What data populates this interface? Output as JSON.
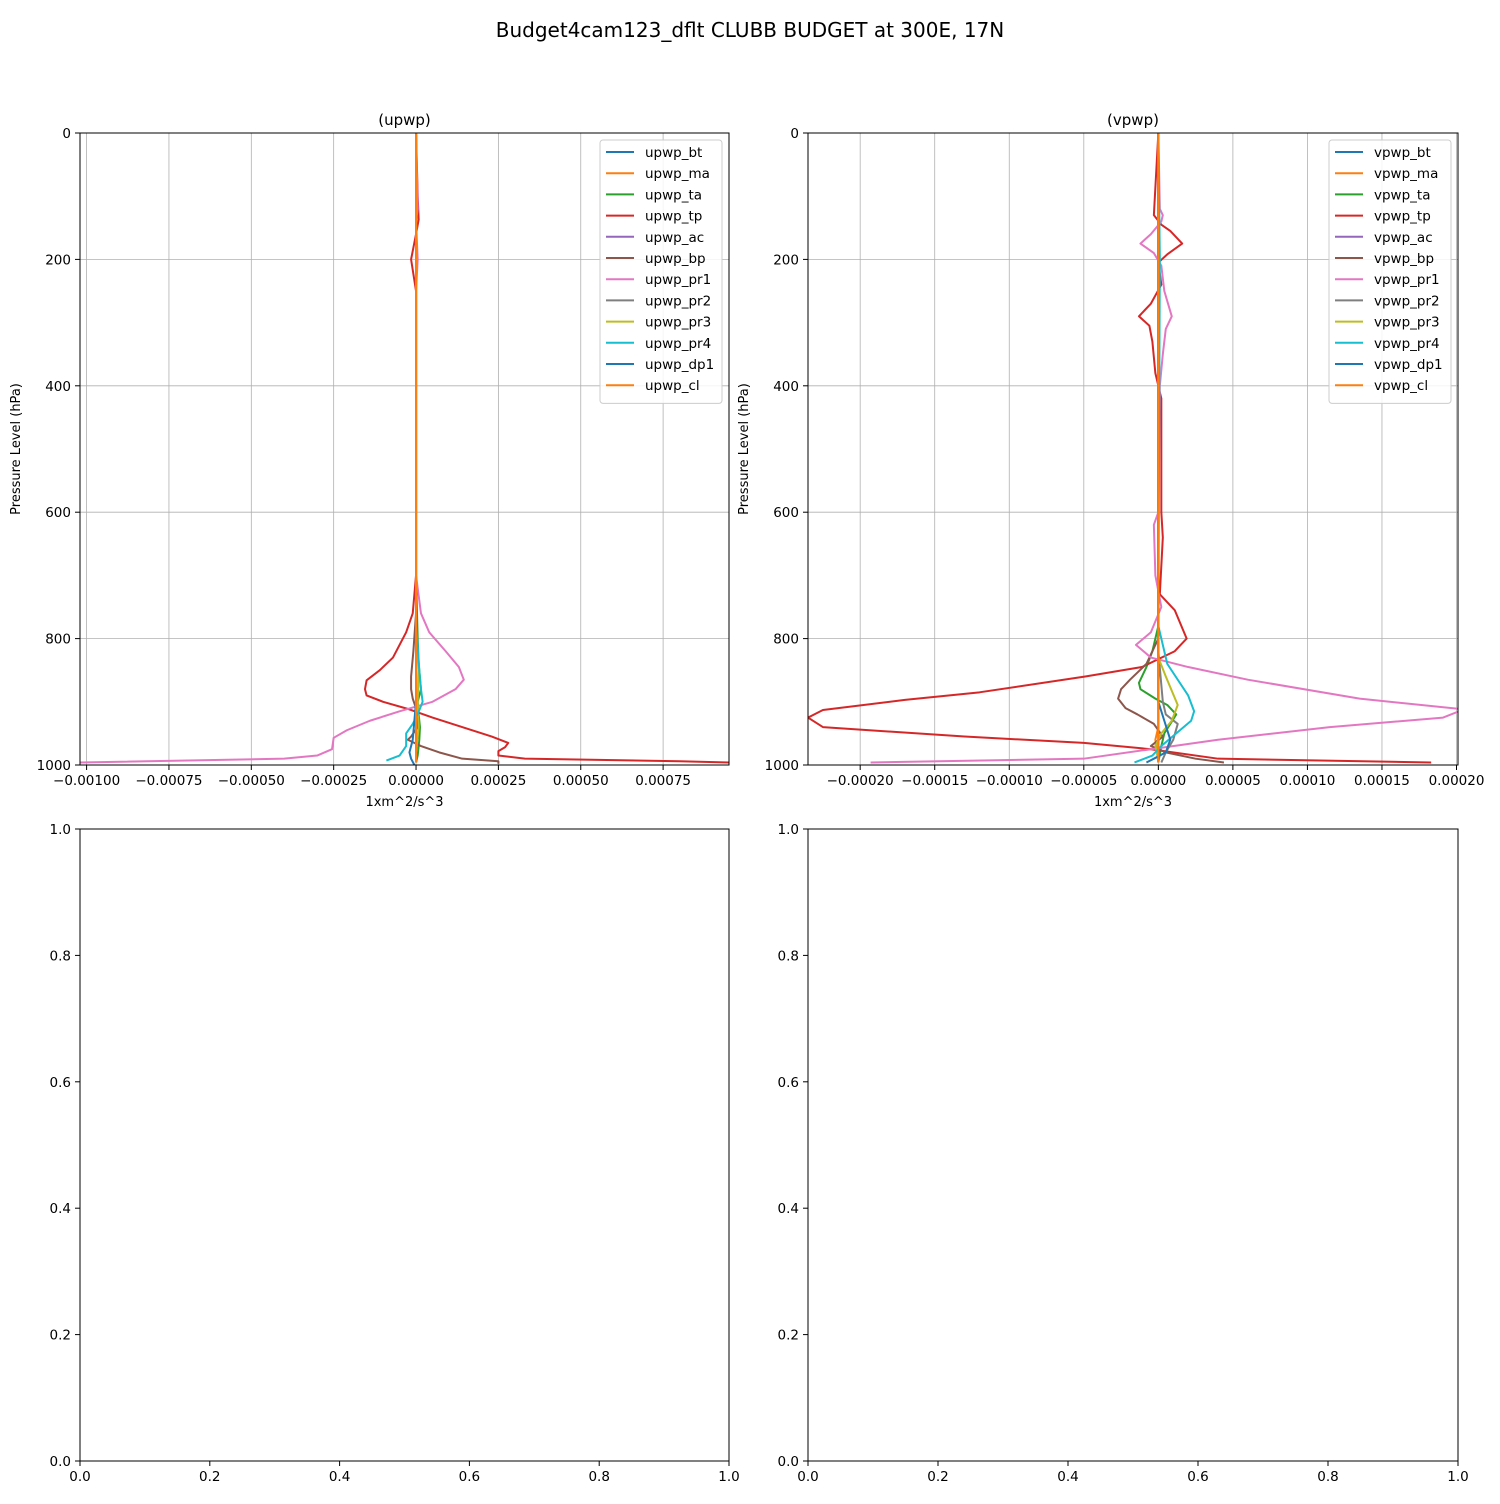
{
  "figure": {
    "suptitle": "Budget4cam123_dflt CLUBB BUDGET at 300E, 17N"
  },
  "chart_data": [
    {
      "type": "line",
      "title": "(upwp)",
      "xlabel": "1xm^2/s^3",
      "ylabel": "Pressure Level (hPa)",
      "xlim": [
        -0.00102,
        0.00095
      ],
      "ylim": [
        1000,
        0
      ],
      "xticks": [
        -0.001,
        -0.00075,
        -0.0005,
        -0.00025,
        0.0,
        0.00025,
        0.0005,
        0.00075
      ],
      "xtick_labels": [
        "−0.00100",
        "−0.00075",
        "−0.00050",
        "−0.00025",
        "0.00000",
        "0.00025",
        "0.00050",
        "0.00075"
      ],
      "yticks": [
        0,
        200,
        400,
        600,
        800,
        1000
      ],
      "ytick_labels": [
        "0",
        "200",
        "400",
        "600",
        "800",
        "1000"
      ],
      "grid": true,
      "legend_position": "top-right",
      "series": [
        {
          "name": "upwp_bt",
          "color": "#1f77b4",
          "x": [
            0,
            0,
            0,
            0
          ],
          "y": [
            0,
            500,
            900,
            996
          ]
        },
        {
          "name": "upwp_ma",
          "color": "#ff7f0e",
          "x": [
            0,
            0,
            0
          ],
          "y": [
            0,
            600,
            996
          ]
        },
        {
          "name": "upwp_ta",
          "color": "#2ca02c",
          "x": [
            0,
            0,
            5e-06,
            8e-06,
            1.5e-05,
            5e-06,
            8e-06,
            1.2e-05,
            1e-05,
            5e-06,
            0
          ],
          "y": [
            0,
            700,
            800,
            840,
            880,
            900,
            920,
            940,
            960,
            985,
            996
          ]
        },
        {
          "name": "upwp_tp",
          "color": "#d62728",
          "x": [
            0,
            5e-06,
            8e-06,
            0,
            -1.5e-05,
            0,
            0,
            0,
            -1e-05,
            -3e-05,
            -7e-05,
            -0.00011,
            -0.00015,
            -0.000155,
            -0.00015,
            -0.0001,
            -2e-05,
            5e-05,
            0.00014,
            0.00023,
            0.00028,
            0.00027,
            0.00025,
            0.00025,
            0.00033,
            0.0008,
            0.00095
          ],
          "y": [
            0,
            100,
            137,
            160,
            200,
            250,
            400,
            700,
            760,
            790,
            830,
            850,
            866,
            880,
            890,
            900,
            912,
            925,
            940,
            955,
            965,
            972,
            978,
            985,
            990,
            994,
            996
          ]
        },
        {
          "name": "upwp_ac",
          "color": "#9467bd",
          "x": [
            0,
            0,
            0
          ],
          "y": [
            0,
            500,
            996
          ]
        },
        {
          "name": "upwp_bp",
          "color": "#8c564b",
          "x": [
            0,
            0,
            -8e-06,
            -1.5e-05,
            -1.5e-05,
            -1e-05,
            0,
            5e-06,
            5e-06,
            -1.5e-05,
            -2.5e-05,
            1.5e-05,
            7e-05,
            0.00014,
            0.00025,
            0.00025
          ],
          "y": [
            0,
            760,
            820,
            860,
            880,
            895,
            910,
            925,
            940,
            955,
            960,
            970,
            980,
            990,
            994,
            998
          ]
        },
        {
          "name": "upwp_pr1",
          "color": "#e377c2",
          "x": [
            0,
            5e-06,
            0,
            5e-06,
            0,
            0,
            1.5e-05,
            4e-05,
            9e-05,
            0.00013,
            0.000145,
            0.00012,
            5e-05,
            -5e-05,
            -0.00014,
            -0.00021,
            -0.00025,
            -0.000255,
            -0.0003,
            -0.0004,
            -0.00102
          ],
          "y": [
            0,
            120,
            140,
            200,
            250,
            700,
            760,
            790,
            820,
            845,
            865,
            880,
            900,
            915,
            930,
            945,
            957,
            975,
            985,
            990,
            996
          ]
        },
        {
          "name": "upwp_pr2",
          "color": "#7f7f7f",
          "x": [
            0,
            0,
            0
          ],
          "y": [
            0,
            600,
            996
          ]
        },
        {
          "name": "upwp_pr3",
          "color": "#bcbd22",
          "x": [
            0,
            0,
            8e-06,
            5e-06,
            8e-06,
            0,
            0
          ],
          "y": [
            0,
            800,
            850,
            900,
            940,
            980,
            996
          ]
        },
        {
          "name": "upwp_pr4",
          "color": "#17becf",
          "x": [
            0,
            0,
            5e-06,
            1e-05,
            1.5e-05,
            2e-05,
            5e-06,
            -1e-05,
            -3e-05,
            -3e-05,
            -5e-05,
            -9e-05
          ],
          "y": [
            0,
            780,
            810,
            850,
            880,
            900,
            920,
            935,
            950,
            970,
            985,
            993
          ]
        },
        {
          "name": "upwp_dp1",
          "color": "#1f77b4",
          "x": [
            0,
            0,
            -1e-05,
            -2e-05,
            -1.5e-05,
            -5e-06
          ],
          "y": [
            0,
            900,
            960,
            980,
            990,
            1000
          ]
        },
        {
          "name": "upwp_cl",
          "color": "#ff7f0e",
          "x": [
            0,
            0,
            0
          ],
          "y": [
            0,
            500,
            996
          ]
        }
      ]
    },
    {
      "type": "line",
      "title": "(vpwp)",
      "xlabel": "1xm^2/s^3",
      "ylabel": "Pressure Level (hPa)",
      "xlim": [
        -0.000235,
        0.000201
      ],
      "ylim": [
        1000,
        0
      ],
      "xticks": [
        -0.0002,
        -0.00015,
        -0.0001,
        -5e-05,
        0.0,
        5e-05,
        0.0001,
        0.00015,
        0.0002
      ],
      "xtick_labels": [
        "−0.00020",
        "−0.00015",
        "−0.00010",
        "−0.00005",
        "0.00000",
        "0.00005",
        "0.00010",
        "0.00015",
        "0.00020"
      ],
      "yticks": [
        0,
        200,
        400,
        600,
        800,
        1000
      ],
      "ytick_labels": [
        "0",
        "200",
        "400",
        "600",
        "800",
        "1000"
      ],
      "grid": true,
      "legend_position": "top-right",
      "series": [
        {
          "name": "vpwp_bt",
          "color": "#1f77b4",
          "x": [
            0,
            0,
            0
          ],
          "y": [
            0,
            600,
            996
          ]
        },
        {
          "name": "vpwp_ma",
          "color": "#ff7f0e",
          "x": [
            0,
            0,
            0,
            -2e-06,
            -1e-06,
            0
          ],
          "y": [
            0,
            600,
            940,
            960,
            980,
            996
          ]
        },
        {
          "name": "vpwp_ta",
          "color": "#2ca02c",
          "x": [
            0,
            0,
            -4e-06,
            -8e-06,
            -1.3e-05,
            -1.2e-05,
            -2e-06,
            6e-06,
            1.2e-05,
            8e-06,
            4e-06,
            2e-06,
            0
          ],
          "y": [
            0,
            780,
            820,
            845,
            870,
            880,
            895,
            905,
            920,
            935,
            950,
            970,
            996
          ]
        },
        {
          "name": "vpwp_tp",
          "color": "#d62728",
          "x": [
            0,
            -3e-06,
            2e-06,
            8e-06,
            1.6e-05,
            6e-06,
            0,
            2e-06,
            -5e-06,
            -1.3e-05,
            -6e-06,
            -4e-06,
            -2e-06,
            2e-06,
            2e-06,
            3e-06,
            1e-06,
            1.1e-05,
            1.9e-05,
            1.1e-05,
            -1.1e-05,
            -4.9e-05,
            -0.00012,
            -0.00017,
            -0.000225,
            -0.000235,
            -0.000225,
            -0.00013,
            -5e-05,
            -5e-06,
            4e-05,
            0.000183
          ],
          "y": [
            0,
            130,
            145,
            155,
            175,
            192,
            205,
            240,
            270,
            290,
            305,
            330,
            380,
            420,
            600,
            640,
            730,
            755,
            800,
            820,
            845,
            860,
            885,
            897,
            913,
            925,
            940,
            955,
            965,
            975,
            990,
            996
          ]
        },
        {
          "name": "vpwp_ac",
          "color": "#9467bd",
          "x": [
            0,
            0,
            0
          ],
          "y": [
            0,
            600,
            996
          ]
        },
        {
          "name": "vpwp_bp",
          "color": "#8c564b",
          "x": [
            0,
            0,
            -8e-06,
            -1.9e-05,
            -2.5e-05,
            -2.7e-05,
            -2.2e-05,
            -1.4e-05,
            -3e-06,
            3e-06,
            -5e-06,
            5e-06,
            2.5e-05,
            4.4e-05
          ],
          "y": [
            0,
            800,
            840,
            865,
            880,
            895,
            910,
            920,
            935,
            955,
            970,
            980,
            990,
            996
          ]
        },
        {
          "name": "vpwp_pr1",
          "color": "#e377c2",
          "x": [
            0,
            1e-06,
            3e-06,
            2e-06,
            -5e-06,
            -1.2e-05,
            -3e-06,
            2e-06,
            4e-06,
            9e-06,
            5e-06,
            3e-06,
            1e-06,
            0,
            -3e-06,
            -2e-06,
            2e-06,
            -5e-06,
            -1.5e-05,
            -5e-06,
            2e-05,
            6e-05,
            0.000135,
            0.000205,
            0.000191,
            0.000115,
            4e-05,
            -5e-06,
            -5e-05,
            -0.000193
          ],
          "y": [
            0,
            120,
            130,
            140,
            160,
            175,
            190,
            210,
            250,
            290,
            310,
            350,
            400,
            600,
            620,
            700,
            750,
            790,
            810,
            830,
            845,
            865,
            895,
            912,
            925,
            940,
            960,
            975,
            990,
            996
          ]
        },
        {
          "name": "vpwp_pr2",
          "color": "#7f7f7f",
          "x": [
            0,
            0,
            3e-06,
            5e-06,
            1.3e-05,
            1e-05,
            5e-06,
            2e-06
          ],
          "y": [
            0,
            820,
            900,
            920,
            935,
            960,
            980,
            996
          ]
        },
        {
          "name": "vpwp_pr3",
          "color": "#bcbd22",
          "x": [
            0,
            0,
            5e-06,
            1.3e-05,
            9e-06,
            2e-06,
            -2e-06,
            0
          ],
          "y": [
            0,
            830,
            860,
            905,
            930,
            950,
            970,
            990
          ]
        },
        {
          "name": "vpwp_pr4",
          "color": "#17becf",
          "x": [
            0,
            1e-06,
            0,
            6e-06,
            2e-05,
            2.4e-05,
            2.2e-05,
            1.2e-05,
            2e-06,
            -4e-06,
            -1.6e-05
          ],
          "y": [
            0,
            200,
            780,
            840,
            890,
            915,
            930,
            950,
            970,
            985,
            996
          ]
        },
        {
          "name": "vpwp_dp1",
          "color": "#1f77b4",
          "x": [
            0,
            0,
            4e-06,
            8e-06,
            5e-06,
            -3e-06,
            -8e-06
          ],
          "y": [
            0,
            900,
            930,
            960,
            980,
            990,
            996
          ]
        },
        {
          "name": "vpwp_cl",
          "color": "#ff7f0e",
          "x": [
            0,
            0,
            0
          ],
          "y": [
            0,
            600,
            996
          ]
        }
      ]
    },
    {
      "type": "line",
      "title": "",
      "xlim": [
        0.0,
        1.0
      ],
      "ylim": [
        0.0,
        1.0
      ],
      "xticks": [
        0.0,
        0.2,
        0.4,
        0.6,
        0.8,
        1.0
      ],
      "xtick_labels": [
        "0.0",
        "0.2",
        "0.4",
        "0.6",
        "0.8",
        "1.0"
      ],
      "yticks": [
        0.0,
        0.2,
        0.4,
        0.6,
        0.8,
        1.0
      ],
      "ytick_labels": [
        "0.0",
        "0.2",
        "0.4",
        "0.6",
        "0.8",
        "1.0"
      ],
      "grid": false,
      "series": []
    },
    {
      "type": "line",
      "title": "",
      "xlim": [
        0.0,
        1.0
      ],
      "ylim": [
        0.0,
        1.0
      ],
      "xticks": [
        0.0,
        0.2,
        0.4,
        0.6,
        0.8,
        1.0
      ],
      "xtick_labels": [
        "0.0",
        "0.2",
        "0.4",
        "0.6",
        "0.8",
        "1.0"
      ],
      "yticks": [
        0.0,
        0.2,
        0.4,
        0.6,
        0.8,
        1.0
      ],
      "ytick_labels": [
        "0.0",
        "0.2",
        "0.4",
        "0.6",
        "0.8",
        "1.0"
      ],
      "grid": false,
      "series": []
    }
  ]
}
